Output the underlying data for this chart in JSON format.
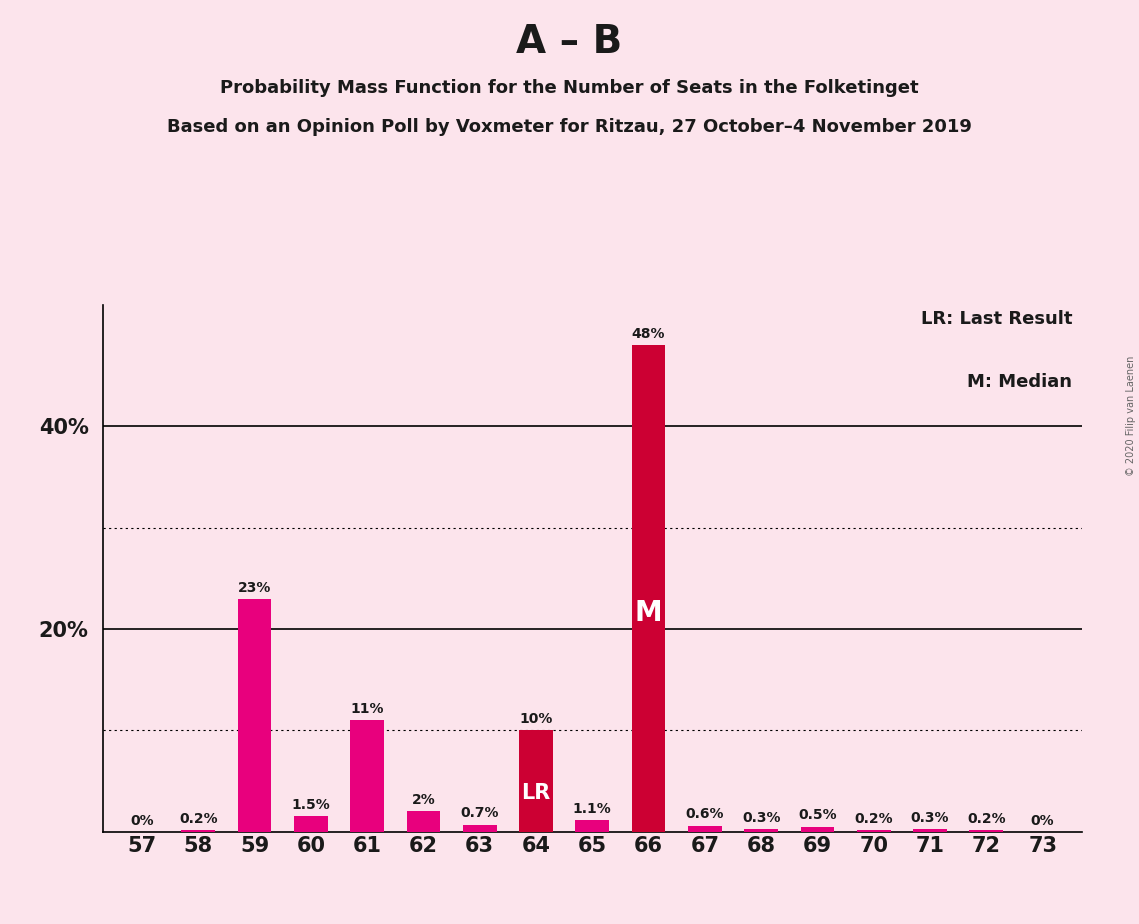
{
  "title_main": "A – B",
  "title_sub1": "Probability Mass Function for the Number of Seats in the Folketinget",
  "title_sub2": "Based on an Opinion Poll by Voxmeter for Ritzau, 27 October–4 November 2019",
  "copyright": "© 2020 Filip van Laenen",
  "categories": [
    57,
    58,
    59,
    60,
    61,
    62,
    63,
    64,
    65,
    66,
    67,
    68,
    69,
    70,
    71,
    72,
    73
  ],
  "values": [
    0.0,
    0.2,
    23.0,
    1.5,
    11.0,
    2.0,
    0.7,
    10.0,
    1.1,
    48.0,
    0.6,
    0.3,
    0.5,
    0.2,
    0.3,
    0.2,
    0.0
  ],
  "labels": [
    "0%",
    "0.2%",
    "23%",
    "1.5%",
    "11%",
    "2%",
    "0.7%",
    "10%",
    "1.1%",
    "48%",
    "0.6%",
    "0.3%",
    "0.5%",
    "0.2%",
    "0.3%",
    "0.2%",
    "0%"
  ],
  "bar_colors": [
    "#e8007d",
    "#e8007d",
    "#e8007d",
    "#e8007d",
    "#e8007d",
    "#e8007d",
    "#e8007d",
    "#cc0033",
    "#e8007d",
    "#cc0033",
    "#e8007d",
    "#e8007d",
    "#e8007d",
    "#e8007d",
    "#e8007d",
    "#e8007d",
    "#e8007d"
  ],
  "lr_bar": 64,
  "median_bar": 66,
  "background_color": "#fce4ec",
  "solid_gridlines": [
    20,
    40
  ],
  "dotted_gridlines": [
    10,
    30
  ],
  "ytick_labeled": [
    20,
    40
  ],
  "ytick_labeled_texts": [
    "20%",
    "40%"
  ],
  "legend_lr": "LR: Last Result",
  "legend_m": "M: Median",
  "ylim": [
    0,
    52
  ],
  "bar_label_fontsize": 10,
  "axis_tick_fontsize": 15,
  "title_main_fontsize": 28,
  "title_sub_fontsize": 13,
  "legend_fontsize": 13,
  "lr_label_fontsize": 15,
  "m_label_fontsize": 20
}
